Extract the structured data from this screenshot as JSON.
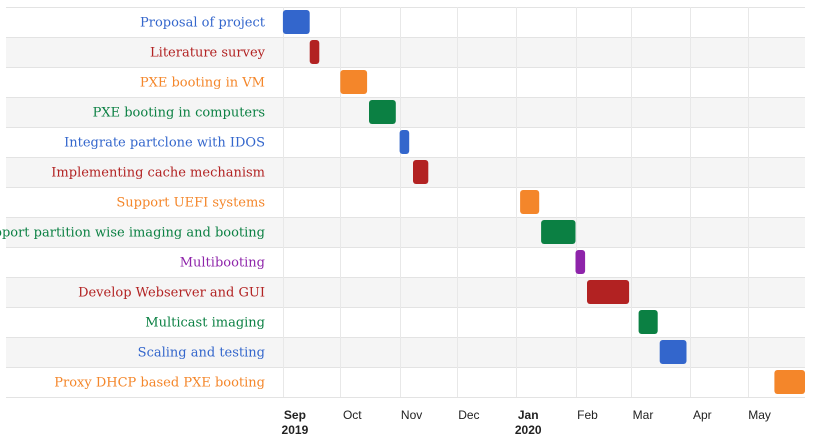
{
  "chart_data": {
    "type": "gantt",
    "time_axis": {
      "start": "2019-08-31",
      "end": "2020-05-31",
      "ticks": [
        {
          "date": "2019-09-01",
          "label": "Sep",
          "year": "2019"
        },
        {
          "date": "2019-10-01",
          "label": "Oct",
          "year": ""
        },
        {
          "date": "2019-11-01",
          "label": "Nov",
          "year": ""
        },
        {
          "date": "2019-12-01",
          "label": "Dec",
          "year": ""
        },
        {
          "date": "2020-01-01",
          "label": "Jan",
          "year": "2020"
        },
        {
          "date": "2020-02-01",
          "label": "Feb",
          "year": ""
        },
        {
          "date": "2020-03-01",
          "label": "Mar",
          "year": ""
        },
        {
          "date": "2020-04-01",
          "label": "Apr",
          "year": ""
        },
        {
          "date": "2020-05-01",
          "label": "May",
          "year": ""
        }
      ]
    },
    "tasks": [
      {
        "name": "Proposal of project",
        "start": "2019-09-01",
        "end": "2019-09-15",
        "color": "#3366cc"
      },
      {
        "name": "Literature survey",
        "start": "2019-09-15",
        "end": "2019-09-20",
        "color": "#b22222"
      },
      {
        "name": "PXE booting in VM",
        "start": "2019-10-01",
        "end": "2019-10-15",
        "color": "#f4862a"
      },
      {
        "name": "PXE booting in computers",
        "start": "2019-10-16",
        "end": "2019-10-30",
        "color": "#0b8043"
      },
      {
        "name": "Integrate partclone with IDOS",
        "start": "2019-11-01",
        "end": "2019-11-06",
        "color": "#3366cc"
      },
      {
        "name": "Implementing cache mechanism",
        "start": "2019-11-08",
        "end": "2019-11-16",
        "color": "#b22222"
      },
      {
        "name": "Support UEFI systems",
        "start": "2020-01-03",
        "end": "2020-01-13",
        "color": "#f4862a"
      },
      {
        "name": "Support partition wise imaging and booting",
        "start": "2020-01-14",
        "end": "2020-02-01",
        "color": "#0b8043"
      },
      {
        "name": "Multibooting",
        "start": "2020-02-01",
        "end": "2020-02-06",
        "color": "#8e24aa"
      },
      {
        "name": "Develop Webserver and GUI",
        "start": "2020-02-07",
        "end": "2020-02-29",
        "color": "#b22222"
      },
      {
        "name": "Multicast imaging",
        "start": "2020-03-05",
        "end": "2020-03-15",
        "color": "#0b8043"
      },
      {
        "name": "Scaling and testing",
        "start": "2020-03-16",
        "end": "2020-03-30",
        "color": "#3366cc"
      },
      {
        "name": "Proxy DHCP based PXE booting",
        "start": "2020-05-15",
        "end": "2020-05-31",
        "color": "#f4862a"
      }
    ]
  }
}
